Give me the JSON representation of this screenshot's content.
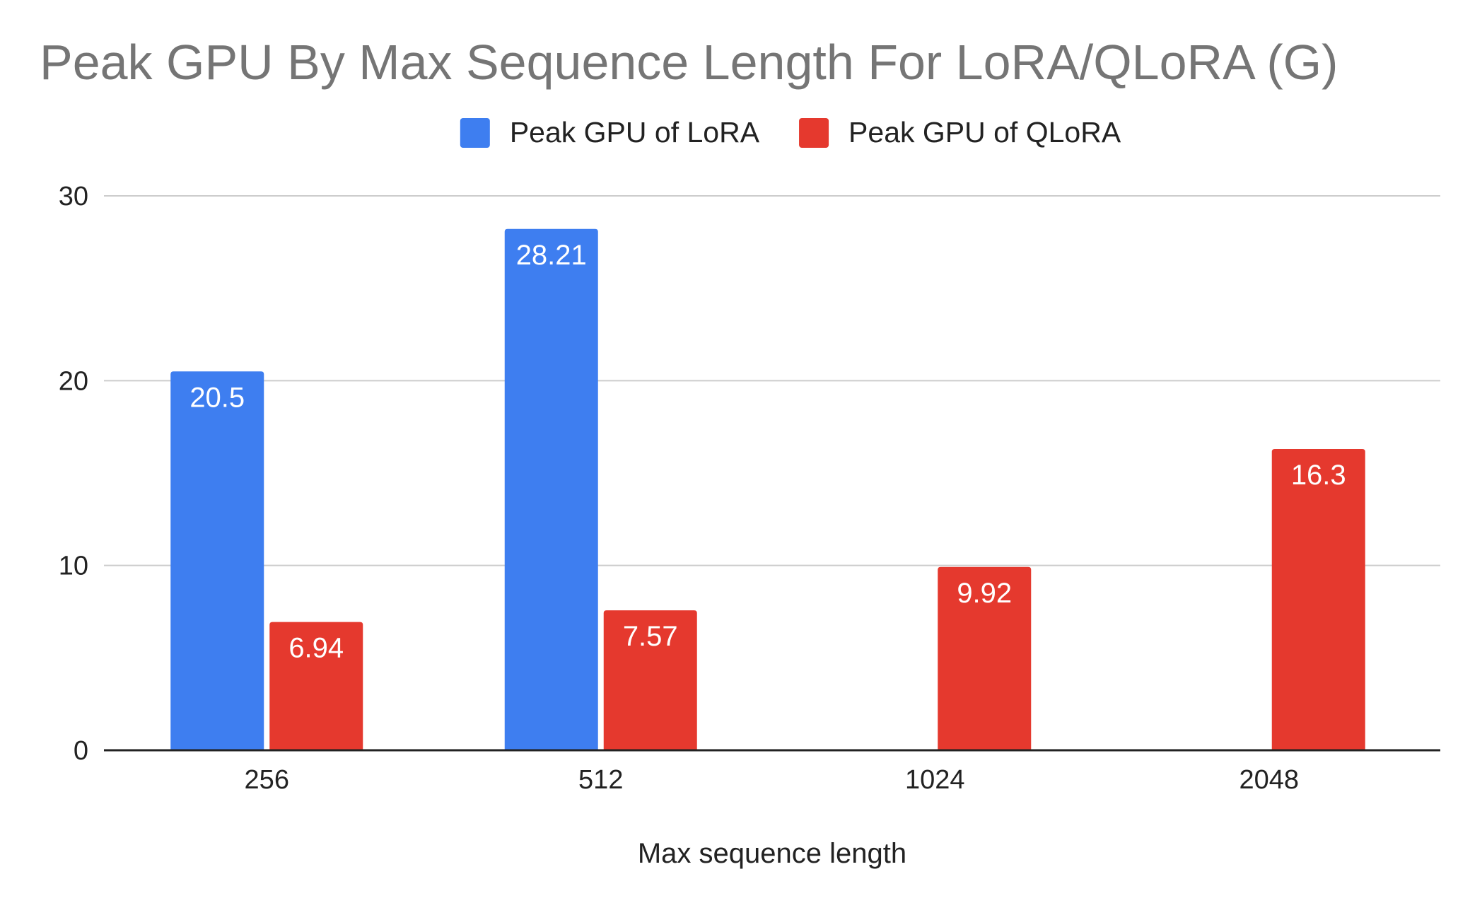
{
  "chart_data": {
    "type": "bar",
    "title": "Peak GPU By Max Sequence Length For LoRA/QLoRA (G)",
    "xlabel": "Max sequence length",
    "ylabel": "",
    "categories": [
      "256",
      "512",
      "1024",
      "2048"
    ],
    "series": [
      {
        "name": "Peak GPU of LoRA",
        "color": "#3e7ef0",
        "values": [
          20.5,
          28.21,
          null,
          null
        ],
        "labels": [
          "20.5",
          "28.21",
          null,
          null
        ]
      },
      {
        "name": "Peak GPU of  QLoRA",
        "color": "#e5392e",
        "values": [
          6.94,
          7.57,
          9.92,
          16.3
        ],
        "labels": [
          "6.94",
          "7.57",
          "9.92",
          "16.3"
        ]
      }
    ],
    "ylim": [
      0,
      30
    ],
    "yticks": [
      "0",
      "10",
      "20",
      "30"
    ],
    "grid": true,
    "legend_position": "top-center"
  }
}
